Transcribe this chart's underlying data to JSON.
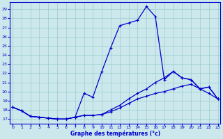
{
  "xlabel": "Graphe des températures (°c)",
  "bg_color": "#cce8ec",
  "line_color": "#0000cc",
  "grid_color": "#99cccc",
  "x_ticks": [
    0,
    1,
    2,
    3,
    4,
    5,
    6,
    7,
    8,
    9,
    10,
    11,
    12,
    13,
    14,
    15,
    16,
    17,
    18,
    19,
    20,
    21,
    22,
    23
  ],
  "y_ticks": [
    17,
    18,
    19,
    20,
    21,
    22,
    23,
    24,
    25,
    26,
    27,
    28,
    29
  ],
  "ylim": [
    16.5,
    29.8
  ],
  "xlim": [
    -0.3,
    23.3
  ],
  "line1": {
    "x": [
      0,
      1,
      2,
      3,
      4,
      5,
      6,
      7,
      8,
      9,
      10,
      11,
      12,
      13,
      14,
      15,
      16,
      17,
      18,
      19,
      20,
      21,
      22,
      23
    ],
    "y": [
      18.3,
      17.9,
      17.3,
      17.2,
      17.1,
      17.0,
      17.0,
      17.2,
      19.8,
      19.4,
      22.2,
      24.8,
      27.2,
      27.5,
      27.8,
      29.3,
      28.2,
      21.3,
      22.2,
      21.5,
      21.3,
      20.3,
      20.5,
      19.2
    ]
  },
  "line2": {
    "x": [
      0,
      1,
      2,
      3,
      4,
      5,
      6,
      7,
      8,
      9,
      10,
      11,
      12,
      13,
      14,
      15,
      16,
      17,
      18,
      19,
      20,
      21,
      22,
      23
    ],
    "y": [
      18.3,
      17.9,
      17.3,
      17.2,
      17.1,
      17.0,
      17.0,
      17.2,
      17.4,
      17.4,
      17.5,
      18.0,
      18.5,
      19.2,
      19.8,
      20.3,
      21.0,
      21.5,
      22.2,
      21.5,
      21.3,
      20.3,
      20.5,
      19.2
    ]
  },
  "line3": {
    "x": [
      0,
      1,
      2,
      3,
      4,
      5,
      6,
      7,
      8,
      9,
      10,
      11,
      12,
      13,
      14,
      15,
      16,
      17,
      18,
      19,
      20,
      21,
      22,
      23
    ],
    "y": [
      18.3,
      17.9,
      17.3,
      17.2,
      17.1,
      17.0,
      17.0,
      17.2,
      17.4,
      17.4,
      17.5,
      17.8,
      18.2,
      18.7,
      19.2,
      19.5,
      19.8,
      20.0,
      20.3,
      20.6,
      20.8,
      20.3,
      19.8,
      19.2
    ]
  }
}
